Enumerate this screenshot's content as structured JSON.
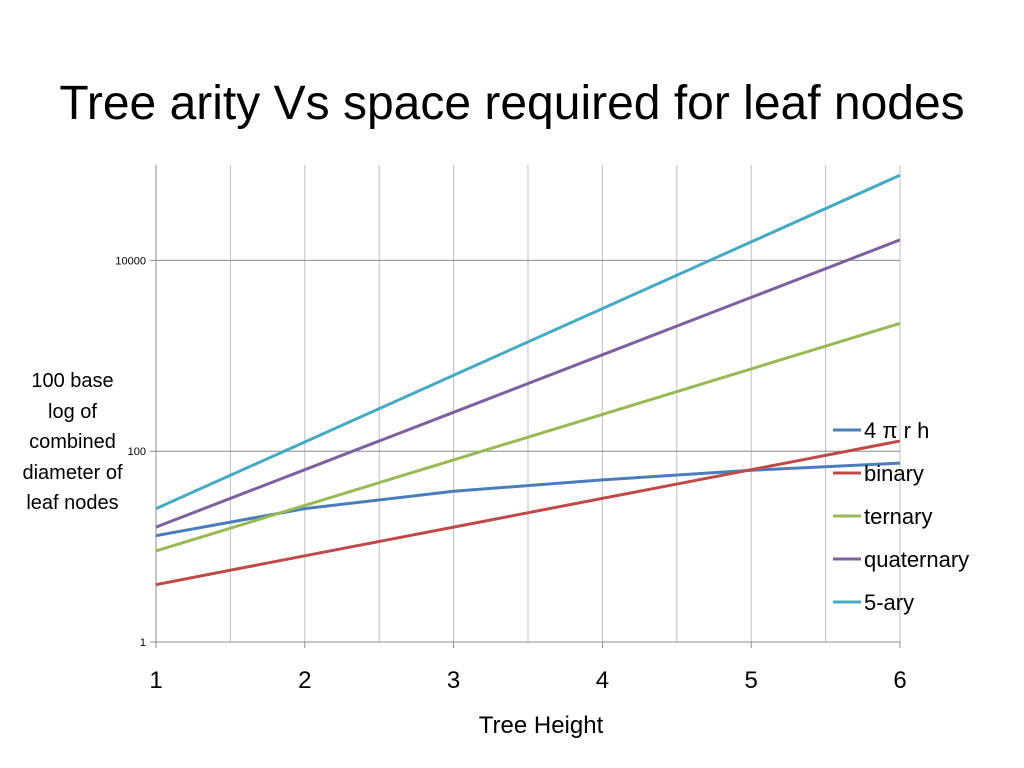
{
  "slide": {
    "title": "Tree arity Vs space required for leaf nodes"
  },
  "chart_data": {
    "type": "line",
    "title": "Tree arity Vs space required for leaf nodes",
    "xlabel": "Tree Height",
    "ylabel_lines": [
      "100 base",
      "log of",
      "combined",
      "diameter of",
      "leaf nodes"
    ],
    "x": [
      1,
      2,
      3,
      4,
      5,
      6
    ],
    "xlim": [
      1,
      6
    ],
    "ylim": [
      1,
      100000
    ],
    "y_scale": "log",
    "y_ticks": [
      {
        "value": 1,
        "label": "1"
      },
      {
        "value": 100,
        "label": "100"
      },
      {
        "value": 10000,
        "label": "10000"
      }
    ],
    "x_tick_labels": [
      "1",
      "2",
      "3",
      "4",
      "5",
      "6"
    ],
    "grid": {
      "x": true,
      "y": true,
      "x_minor": true
    },
    "legend_position": "right",
    "series": [
      {
        "name": "4 π r h",
        "color": "#4a7ebb",
        "values": [
          13,
          25,
          38,
          50,
          63,
          75
        ]
      },
      {
        "name": "binary",
        "color": "#be4b48",
        "values": [
          4,
          8,
          16,
          32,
          64,
          128
        ]
      },
      {
        "name": "ternary",
        "color": "#98b954",
        "values": [
          9,
          27,
          81,
          243,
          729,
          2187
        ]
      },
      {
        "name": "quaternary",
        "color": "#7d60a0",
        "values": [
          16,
          64,
          256,
          1024,
          4096,
          16384
        ]
      },
      {
        "name": "5-ary",
        "color": "#46aac5",
        "values": [
          25,
          125,
          625,
          3125,
          15625,
          78125
        ]
      }
    ]
  }
}
